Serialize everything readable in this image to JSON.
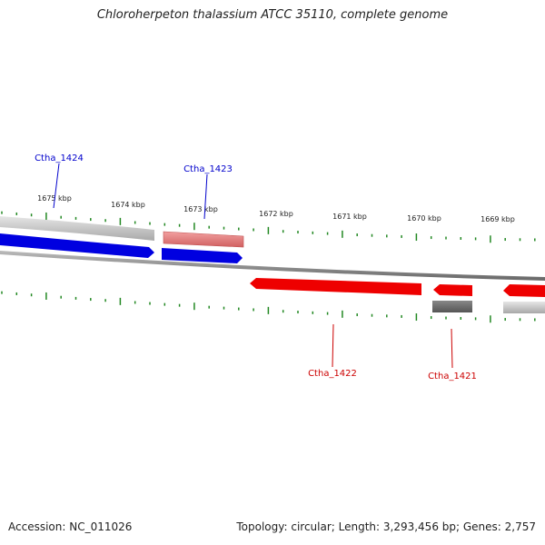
{
  "title": "Chloroherpeton thalassium ATCC 35110, complete genome",
  "accession": {
    "label": "Accession:",
    "value": "NC_011026"
  },
  "topology_line": "Topology: circular; Length: 3,293,456 bp; Genes: 2,757",
  "ruler": {
    "ticks": [
      "1675 kbp",
      "1674 kbp",
      "1673 kbp",
      "1672 kbp",
      "1671 kbp",
      "1670 kbp",
      "1669 kbp"
    ]
  },
  "gene_labels": [
    {
      "name": "Ctha_1424",
      "color": "#0000cc"
    },
    {
      "name": "Ctha_1423",
      "color": "#0000cc"
    },
    {
      "name": "Ctha_1422",
      "color": "#cc0000"
    },
    {
      "name": "Ctha_1421",
      "color": "#cc0000"
    }
  ],
  "colors": {
    "forward_cds": "#0000e0",
    "reverse_cds": "#ee0000",
    "forward_highlight": "#e07070",
    "gray_band": "#b0b0b0",
    "dark_gray_band": "#666666",
    "backbone": "#888888",
    "tick": "#228822"
  }
}
